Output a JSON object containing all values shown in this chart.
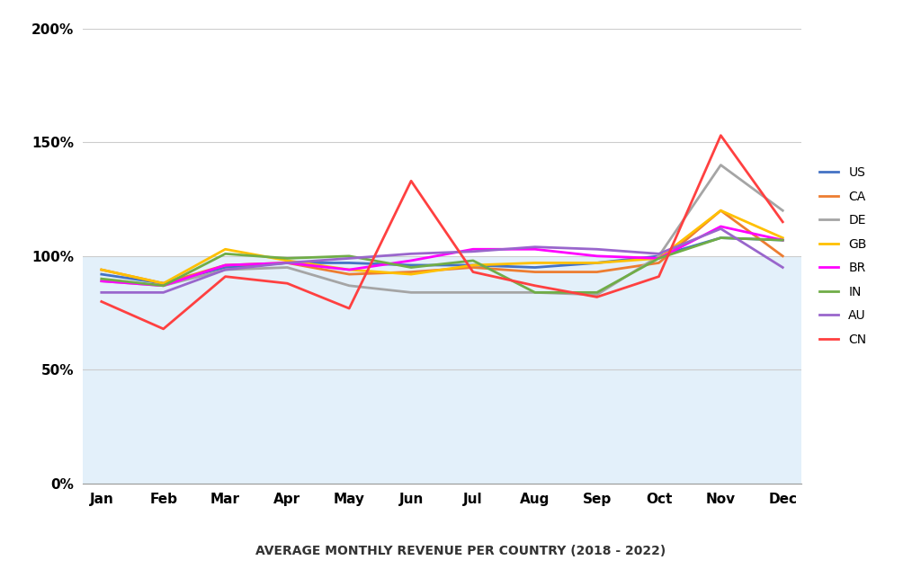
{
  "months": [
    "Jan",
    "Feb",
    "Mar",
    "Apr",
    "May",
    "Jun",
    "Jul",
    "Aug",
    "Sep",
    "Oct",
    "Nov",
    "Dec"
  ],
  "series": {
    "US": {
      "color": "#4472C4",
      "values": [
        92,
        88,
        95,
        97,
        97,
        96,
        96,
        95,
        97,
        100,
        108,
        107
      ]
    },
    "CA": {
      "color": "#ED7D31",
      "values": [
        94,
        88,
        96,
        97,
        92,
        93,
        95,
        93,
        93,
        97,
        120,
        100
      ]
    },
    "DE": {
      "color": "#A5A5A5",
      "values": [
        89,
        87,
        94,
        95,
        87,
        84,
        84,
        84,
        83,
        100,
        140,
        120
      ]
    },
    "GB": {
      "color": "#FFC000",
      "values": [
        94,
        88,
        103,
        98,
        94,
        92,
        96,
        97,
        97,
        99,
        120,
        108
      ]
    },
    "BR": {
      "color": "#FF00FF",
      "values": [
        89,
        87,
        96,
        97,
        94,
        98,
        103,
        103,
        100,
        99,
        113,
        107
      ]
    },
    "IN": {
      "color": "#70AD47",
      "values": [
        90,
        87,
        101,
        99,
        100,
        95,
        98,
        84,
        84,
        99,
        108,
        107
      ]
    },
    "AU": {
      "color": "#9966CC",
      "values": [
        84,
        84,
        94,
        97,
        99,
        101,
        102,
        104,
        103,
        101,
        112,
        95
      ]
    },
    "CN": {
      "color": "#FF4040",
      "values": [
        80,
        68,
        91,
        88,
        77,
        133,
        93,
        87,
        82,
        91,
        153,
        115
      ]
    }
  },
  "title": "AVERAGE MONTHLY REVENUE PER COUNTRY (2018 - 2022)",
  "ylim": [
    0,
    200
  ],
  "yticks": [
    0,
    50,
    100,
    150,
    200
  ],
  "ytick_labels": [
    "0%",
    "50%",
    "100%",
    "150%",
    "200%"
  ],
  "background_color": "#FFFFFF",
  "plot_bg_color": "#E3F0FA",
  "grid_color": "#CCCCCC",
  "title_fontsize": 10,
  "legend_fontsize": 10,
  "tick_fontsize": 11
}
